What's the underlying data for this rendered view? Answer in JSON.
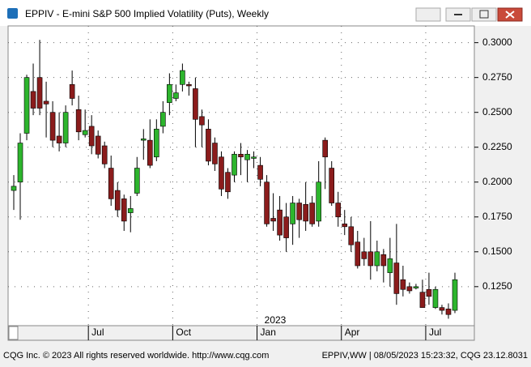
{
  "chart_data": {
    "type": "candlestick",
    "title": "EPPIV - E-mini S&P 500 Implied Volatility (Puts), Weekly",
    "year_label": "2023",
    "footer_left": "CQG Inc. © 2023 All rights reserved worldwide. http://www.cqg.com",
    "footer_right": "EPPIV,WW | 08/05/2023 15:23:32, CQG 23.12.8031",
    "categories": [
      null,
      null,
      null,
      null,
      null,
      null,
      null,
      null,
      null,
      null,
      null,
      null,
      "Jul",
      null,
      null,
      null,
      null,
      null,
      null,
      null,
      null,
      null,
      null,
      null,
      null,
      "Oct",
      null,
      null,
      null,
      null,
      null,
      null,
      null,
      null,
      null,
      null,
      null,
      null,
      "Jan",
      null,
      null,
      null,
      null,
      null,
      null,
      null,
      null,
      null,
      null,
      null,
      null,
      "Apr",
      null,
      null,
      null,
      null,
      null,
      null,
      null,
      null,
      null,
      null,
      null,
      null,
      "Jul",
      null,
      null,
      null,
      null
    ],
    "open": [
      0.194,
      0.2,
      0.235,
      0.265,
      0.275,
      0.258,
      0.25,
      0.233,
      0.228,
      0.27,
      0.252,
      0.234,
      0.24,
      0.233,
      0.226,
      0.21,
      0.194,
      0.188,
      0.178,
      0.192,
      0.23,
      0.23,
      0.218,
      0.24,
      0.257,
      0.26,
      0.27,
      0.27,
      0.267,
      0.247,
      0.238,
      0.228,
      0.218,
      0.207,
      0.205,
      0.22,
      0.216,
      0.217,
      0.212,
      0.2,
      0.174,
      0.18,
      0.175,
      0.17,
      0.185,
      0.184,
      0.185,
      0.172,
      0.23,
      0.21,
      0.185,
      0.17,
      0.168,
      0.157,
      0.15,
      0.15,
      0.14,
      0.148,
      0.135,
      0.142,
      0.13,
      0.125,
      0.124,
      0.121,
      0.123,
      0.11,
      0.11,
      0.109,
      0.108
    ],
    "high": [
      0.205,
      0.235,
      0.277,
      0.285,
      0.302,
      0.272,
      0.258,
      0.25,
      0.255,
      0.28,
      0.262,
      0.252,
      0.248,
      0.237,
      0.229,
      0.219,
      0.2,
      0.191,
      0.19,
      0.218,
      0.238,
      0.245,
      0.245,
      0.258,
      0.278,
      0.27,
      0.285,
      0.272,
      0.275,
      0.252,
      0.245,
      0.232,
      0.222,
      0.21,
      0.222,
      0.228,
      0.223,
      0.222,
      0.218,
      0.205,
      0.192,
      0.19,
      0.185,
      0.19,
      0.188,
      0.2,
      0.19,
      0.215,
      0.232,
      0.215,
      0.193,
      0.18,
      0.175,
      0.165,
      0.16,
      0.172,
      0.158,
      0.152,
      0.16,
      0.17,
      0.14,
      0.128,
      0.127,
      0.13,
      0.135,
      0.125,
      0.112,
      0.113,
      0.135
    ],
    "low": [
      0.18,
      0.173,
      0.23,
      0.248,
      0.248,
      0.232,
      0.225,
      0.222,
      0.225,
      0.255,
      0.23,
      0.232,
      0.22,
      0.217,
      0.21,
      0.183,
      0.175,
      0.165,
      0.164,
      0.19,
      0.216,
      0.21,
      0.215,
      0.235,
      0.248,
      0.258,
      0.265,
      0.262,
      0.225,
      0.225,
      0.212,
      0.208,
      0.19,
      0.188,
      0.2,
      0.205,
      0.2,
      0.21,
      0.197,
      0.168,
      0.165,
      0.158,
      0.15,
      0.155,
      0.16,
      0.165,
      0.168,
      0.168,
      0.195,
      0.183,
      0.168,
      0.162,
      0.15,
      0.138,
      0.14,
      0.13,
      0.136,
      0.128,
      0.125,
      0.112,
      0.118,
      0.12,
      0.123,
      0.11,
      0.112,
      0.109,
      0.105,
      0.102,
      0.106
    ],
    "close": [
      0.197,
      0.228,
      0.275,
      0.253,
      0.253,
      0.256,
      0.23,
      0.228,
      0.25,
      0.26,
      0.236,
      0.237,
      0.226,
      0.22,
      0.213,
      0.188,
      0.18,
      0.172,
      0.181,
      0.21,
      0.231,
      0.212,
      0.238,
      0.25,
      0.27,
      0.264,
      0.28,
      0.269,
      0.245,
      0.241,
      0.215,
      0.213,
      0.195,
      0.193,
      0.22,
      0.218,
      0.22,
      0.218,
      0.202,
      0.17,
      0.172,
      0.162,
      0.16,
      0.185,
      0.173,
      0.172,
      0.17,
      0.2,
      0.218,
      0.185,
      0.175,
      0.168,
      0.155,
      0.14,
      0.145,
      0.14,
      0.15,
      0.14,
      0.145,
      0.12,
      0.123,
      0.122,
      0.125,
      0.11,
      0.118,
      0.123,
      0.108,
      0.105,
      0.13
    ],
    "up_color": "#2db52d",
    "down_color": "#8b1c1c",
    "ylim": [
      0.097,
      0.312
    ],
    "yticks": [
      {
        "value": 0.125,
        "label": "0.1250"
      },
      {
        "value": 0.15,
        "label": "0.1500"
      },
      {
        "value": 0.175,
        "label": "0.1750"
      },
      {
        "value": 0.2,
        "label": "0.2000"
      },
      {
        "value": 0.225,
        "label": "0.2250"
      },
      {
        "value": 0.25,
        "label": "0.2500"
      },
      {
        "value": 0.275,
        "label": "0.2750"
      },
      {
        "value": 0.3,
        "label": "0.3000"
      }
    ],
    "grid": true
  }
}
